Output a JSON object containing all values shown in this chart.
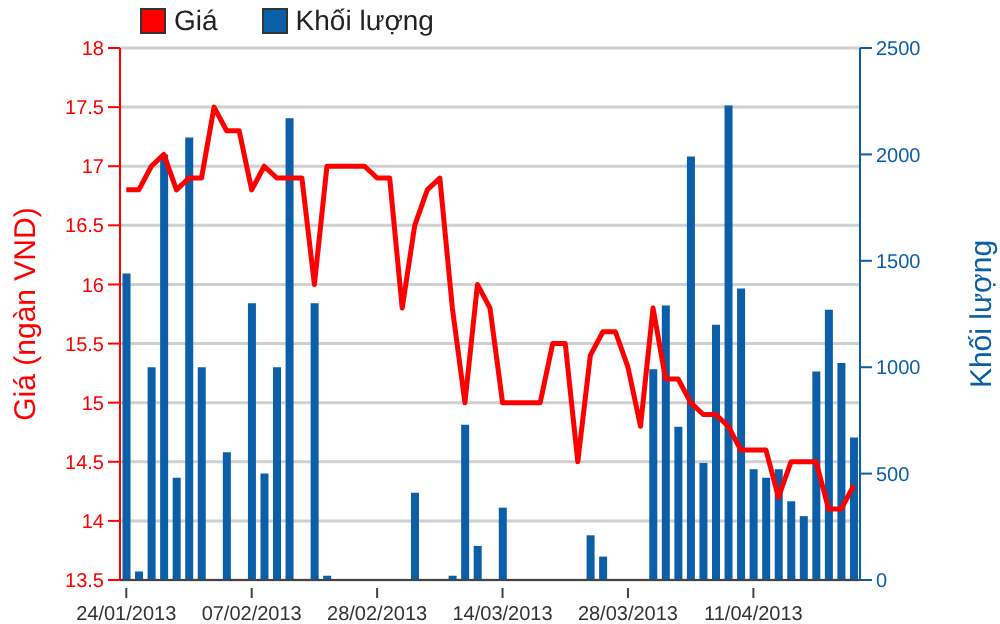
{
  "chart_data": {
    "type": "line",
    "ylabel": "Giá (ngàn VND)",
    "y2label": "Khối lượng",
    "categories": [
      "24/01/2013",
      null,
      null,
      null,
      null,
      null,
      null,
      null,
      null,
      null,
      "07/02/2013",
      null,
      null,
      null,
      null,
      null,
      null,
      null,
      null,
      null,
      "28/02/2013",
      null,
      null,
      null,
      null,
      null,
      null,
      null,
      null,
      null,
      "14/03/2013",
      null,
      null,
      null,
      null,
      null,
      null,
      null,
      null,
      null,
      "28/03/2013",
      null,
      null,
      null,
      null,
      null,
      null,
      null,
      null,
      null,
      "11/04/2013",
      null,
      null,
      null,
      null,
      null,
      null,
      null,
      null
    ],
    "series": [
      {
        "name": "Giá",
        "color": "#ff0000",
        "values": [
          16.8,
          16.8,
          17.0,
          17.1,
          16.8,
          16.9,
          16.9,
          17.5,
          17.3,
          17.3,
          16.8,
          17.0,
          16.9,
          16.9,
          16.9,
          16.0,
          17.0,
          17.0,
          17.0,
          17.0,
          16.9,
          16.9,
          15.8,
          16.5,
          16.8,
          16.9,
          15.8,
          15.0,
          16.0,
          15.8,
          15.0,
          15.0,
          15.0,
          15.0,
          15.5,
          15.5,
          14.5,
          15.4,
          15.6,
          15.6,
          15.3,
          14.8,
          15.8,
          15.2,
          15.2,
          15.0,
          14.9,
          14.9,
          14.8,
          14.6,
          14.6,
          14.6,
          14.2,
          14.5,
          14.5,
          14.5,
          14.1,
          14.1,
          14.3
        ]
      },
      {
        "name": "Khối lượng",
        "type": "bar",
        "axis": "y2",
        "color": "#0b5ea8",
        "values": [
          1440,
          40,
          1000,
          2000,
          480,
          2080,
          1000,
          null,
          600,
          null,
          1300,
          500,
          1000,
          2170,
          null,
          1300,
          20,
          null,
          null,
          null,
          null,
          null,
          null,
          410,
          null,
          null,
          20,
          730,
          160,
          null,
          340,
          null,
          null,
          null,
          null,
          null,
          null,
          210,
          110,
          null,
          null,
          null,
          990,
          1290,
          720,
          1990,
          550,
          1200,
          2230,
          1370,
          520,
          480,
          520,
          370,
          300,
          980,
          1270,
          1020,
          670
        ]
      }
    ],
    "ylim": [
      13.5,
      18
    ],
    "yticks": [
      13.5,
      14,
      14.5,
      15,
      15.5,
      16,
      16.5,
      17,
      17.5,
      18
    ],
    "y2lim": [
      0,
      2500
    ],
    "y2ticks": [
      0,
      500,
      1000,
      1500,
      2000,
      2500
    ],
    "grid": "y",
    "legend": "top left",
    "marker": "none",
    "line_style": "solid"
  }
}
